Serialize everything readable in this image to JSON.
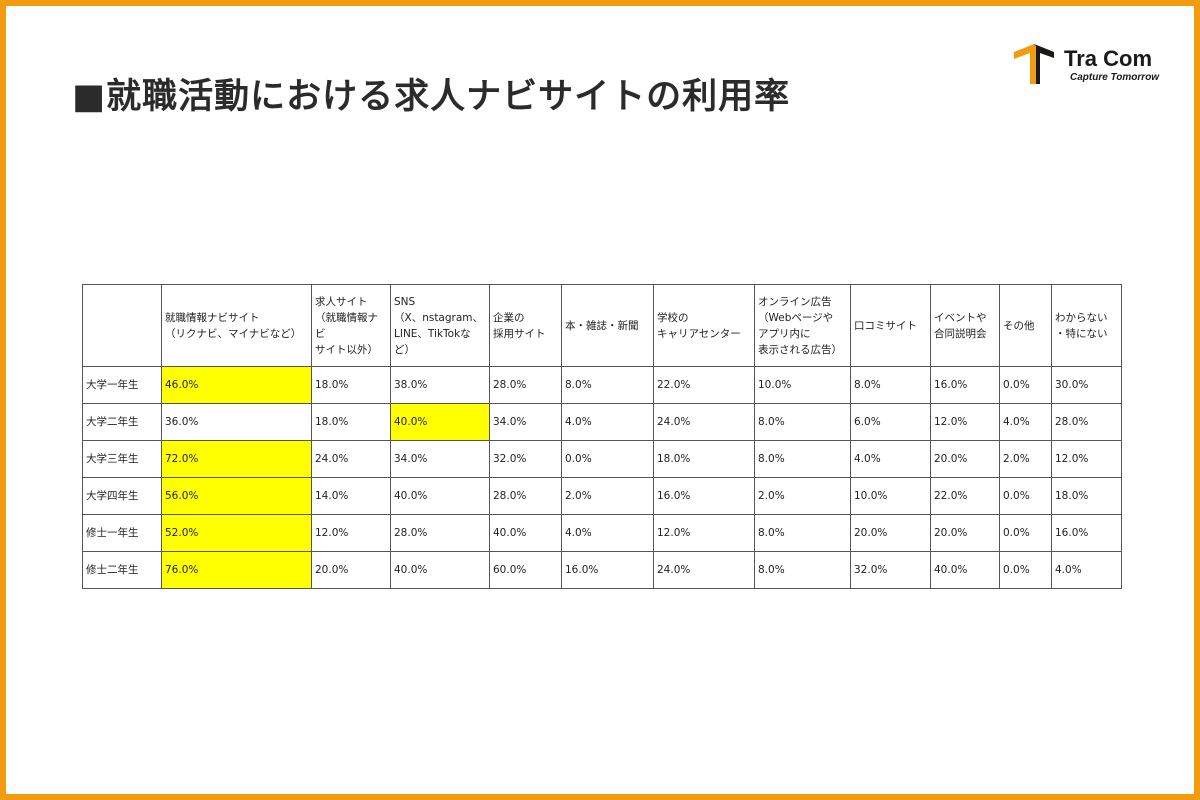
{
  "slide": {
    "title": "■就職活動における求人ナビサイトの利用率",
    "accent_color": "#f39c12",
    "highlight_color": "#ffff00"
  },
  "logo": {
    "name": "Tra Com",
    "tagline": "Capture Tomorrow",
    "icon": "tracom-logo-icon"
  },
  "table": {
    "columns": [
      "",
      "就職情報ナビサイト\n（リクナビ、マイナビなど）",
      "求人サイト\n（就職情報ナビ\nサイト以外）",
      "SNS\n（X、nstagram、\nLINE、TikTokな\nど）",
      "企業の\n採用サイト",
      "本・雑誌・新聞",
      "学校の\nキャリアセンター",
      "オンライン広告\n（Webページや\nアプリ内に\n表示される広告）",
      "口コミサイト",
      "イベントや\n合同説明会",
      "その他",
      "わからない\n・特にない"
    ],
    "rows": [
      {
        "label": "大学一年生",
        "values": [
          "46.0%",
          "18.0%",
          "38.0%",
          "28.0%",
          "8.0%",
          "22.0%",
          "10.0%",
          "8.0%",
          "16.0%",
          "0.0%",
          "30.0%"
        ],
        "highlight": [
          0
        ]
      },
      {
        "label": "大学二年生",
        "values": [
          "36.0%",
          "18.0%",
          "40.0%",
          "34.0%",
          "4.0%",
          "24.0%",
          "8.0%",
          "6.0%",
          "12.0%",
          "4.0%",
          "28.0%"
        ],
        "highlight": [
          2
        ]
      },
      {
        "label": "大学三年生",
        "values": [
          "72.0%",
          "24.0%",
          "34.0%",
          "32.0%",
          "0.0%",
          "18.0%",
          "8.0%",
          "4.0%",
          "20.0%",
          "2.0%",
          "12.0%"
        ],
        "highlight": [
          0
        ]
      },
      {
        "label": "大学四年生",
        "values": [
          "56.0%",
          "14.0%",
          "40.0%",
          "28.0%",
          "2.0%",
          "16.0%",
          "2.0%",
          "10.0%",
          "22.0%",
          "0.0%",
          "18.0%"
        ],
        "highlight": [
          0
        ]
      },
      {
        "label": "修士一年生",
        "values": [
          "52.0%",
          "12.0%",
          "28.0%",
          "40.0%",
          "4.0%",
          "12.0%",
          "8.0%",
          "20.0%",
          "20.0%",
          "0.0%",
          "16.0%"
        ],
        "highlight": [
          0
        ]
      },
      {
        "label": "修士二年生",
        "values": [
          "76.0%",
          "20.0%",
          "40.0%",
          "60.0%",
          "16.0%",
          "24.0%",
          "8.0%",
          "32.0%",
          "40.0%",
          "0.0%",
          "4.0%"
        ],
        "highlight": [
          0
        ]
      }
    ]
  }
}
